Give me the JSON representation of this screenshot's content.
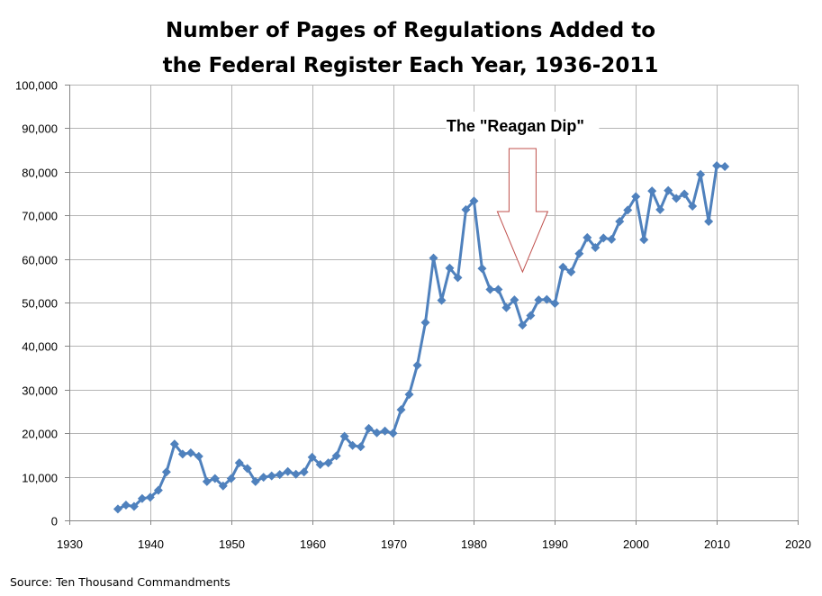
{
  "chart_data": {
    "type": "line",
    "title_lines": [
      "Number of Pages of Regulations Added to",
      "the Federal Register Each Year, 1936-2011"
    ],
    "xlabel": "",
    "ylabel": "",
    "xlim": [
      1930,
      2020
    ],
    "ylim": [
      0,
      100000
    ],
    "x_ticks": [
      1930,
      1940,
      1950,
      1960,
      1970,
      1980,
      1990,
      2000,
      2010,
      2020
    ],
    "y_ticks": [
      0,
      10000,
      20000,
      30000,
      40000,
      50000,
      60000,
      70000,
      80000,
      90000,
      100000
    ],
    "x_tick_labels": [
      "1930",
      "1940",
      "1950",
      "1960",
      "1970",
      "1980",
      "1990",
      "2000",
      "2010",
      "2020"
    ],
    "y_tick_labels": [
      "0",
      "10,000",
      "20,000",
      "30,000",
      "40,000",
      "50,000",
      "60,000",
      "70,000",
      "80,000",
      "90,000",
      "100,000"
    ],
    "grid": true,
    "legend": "none",
    "series": [
      {
        "color": "#4f81bd",
        "marker": "diamond",
        "x": [
          1936,
          1937,
          1938,
          1939,
          1940,
          1941,
          1942,
          1943,
          1944,
          1945,
          1946,
          1947,
          1948,
          1949,
          1950,
          1951,
          1952,
          1953,
          1954,
          1955,
          1956,
          1957,
          1958,
          1959,
          1960,
          1961,
          1962,
          1963,
          1964,
          1965,
          1966,
          1967,
          1968,
          1969,
          1970,
          1971,
          1972,
          1973,
          1974,
          1975,
          1976,
          1977,
          1978,
          1979,
          1980,
          1981,
          1982,
          1983,
          1984,
          1985,
          1986,
          1987,
          1988,
          1989,
          1990,
          1991,
          1992,
          1993,
          1994,
          1995,
          1996,
          1997,
          1998,
          1999,
          2000,
          2001,
          2002,
          2003,
          2004,
          2005,
          2006,
          2007,
          2008,
          2009,
          2010,
          2011
        ],
        "y": [
          2600,
          3500,
          3200,
          5000,
          5300,
          6900,
          11100,
          17500,
          15200,
          15500,
          14700,
          8900,
          9600,
          7900,
          9600,
          13200,
          11900,
          8900,
          9900,
          10200,
          10500,
          11200,
          10600,
          11100,
          14500,
          12800,
          13200,
          14800,
          19300,
          17200,
          16900,
          21100,
          20100,
          20500,
          20000,
          25400,
          28900,
          35600,
          45400,
          60200,
          50500,
          57900,
          55700,
          71300,
          73300,
          57800,
          53000,
          53000,
          48800,
          50600,
          44800,
          47000,
          50600,
          50700,
          49800,
          58100,
          57000,
          61200,
          64900,
          62600,
          64800,
          64500,
          68600,
          71200,
          74300,
          64400,
          75600,
          71300,
          75700,
          73900,
          74900,
          72100,
          79400,
          68600,
          81400,
          81200
        ]
      }
    ],
    "annotation": {
      "text": "The \"Reagan Dip\"",
      "arrow_target": {
        "x": 1986,
        "y": 57000
      }
    },
    "source_note": "Source: Ten Thousand  Commandments"
  }
}
